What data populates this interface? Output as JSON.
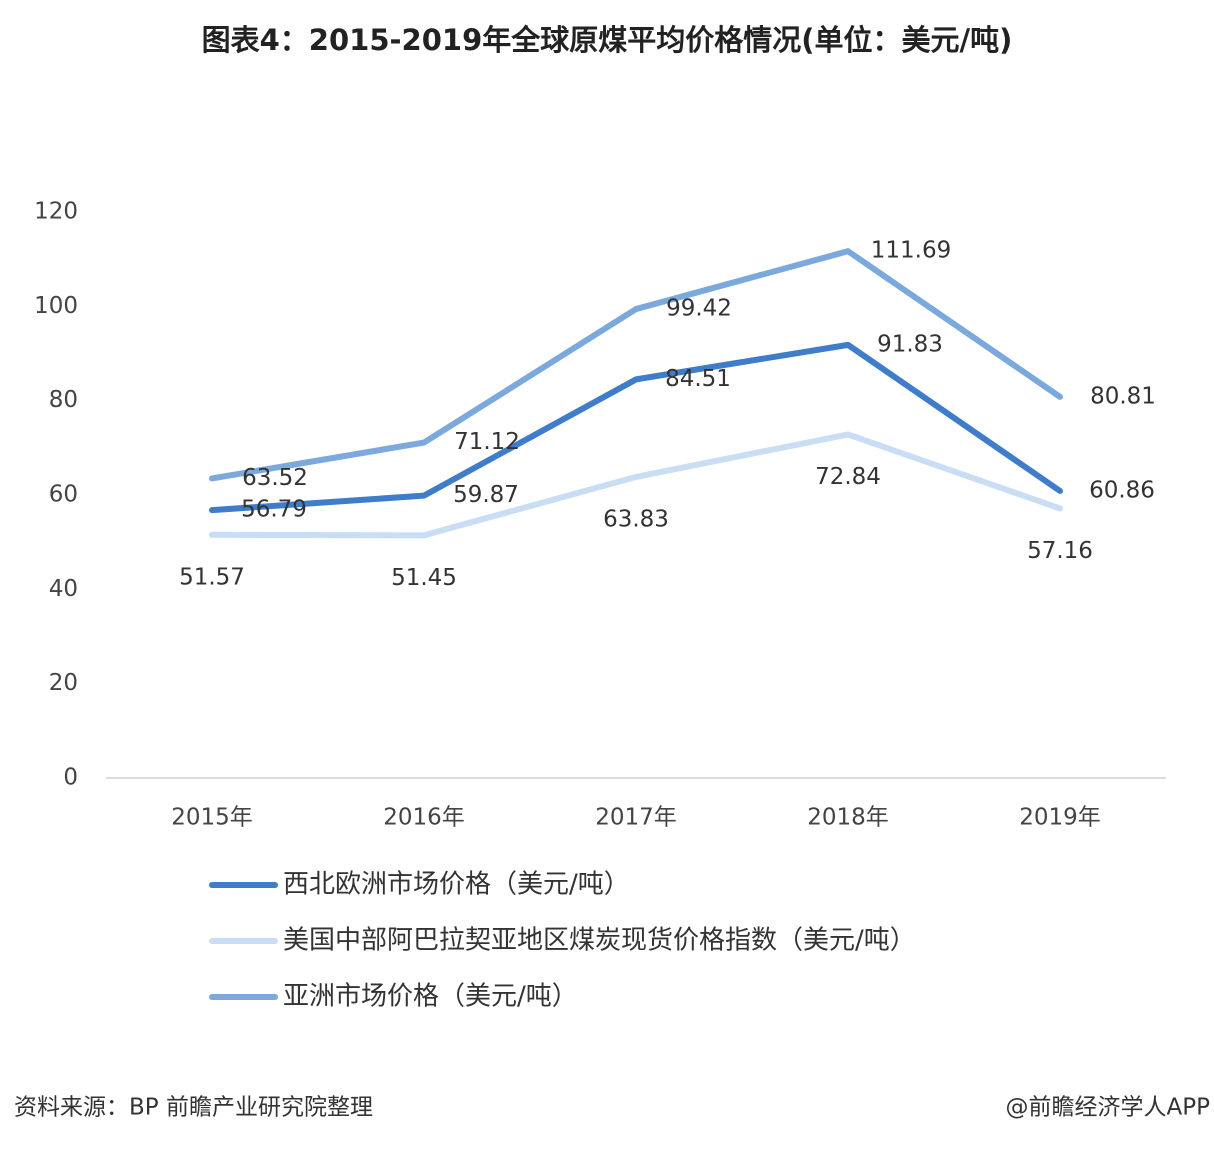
{
  "chart_data": {
    "type": "line",
    "title": "图表4：2015-2019年全球原煤平均价格情况(单位：美元/吨)",
    "categories": [
      "2015年",
      "2016年",
      "2017年",
      "2018年",
      "2019年"
    ],
    "series": [
      {
        "name": "西北欧洲市场价格（美元/吨）",
        "color": "#3f7cc9",
        "values": [
          56.79,
          59.87,
          84.51,
          91.83,
          60.86
        ]
      },
      {
        "name": "美国中部阿巴拉契亚地区煤炭现货价格指数（美元/吨）",
        "color": "#c9ddf5",
        "values": [
          51.57,
          51.45,
          63.83,
          72.84,
          57.16
        ]
      },
      {
        "name": "亚洲市场价格（美元/吨）",
        "color": "#7ba9de",
        "values": [
          63.52,
          71.12,
          99.42,
          111.69,
          80.81
        ]
      }
    ],
    "ylim": [
      0,
      120
    ],
    "yticks": [
      0,
      20,
      40,
      60,
      80,
      100,
      120
    ],
    "grid": false,
    "legend": "bottom",
    "source": "资料来源：BP 前瞻产业研究院整理",
    "credit": "@前瞻经济学人APP"
  }
}
